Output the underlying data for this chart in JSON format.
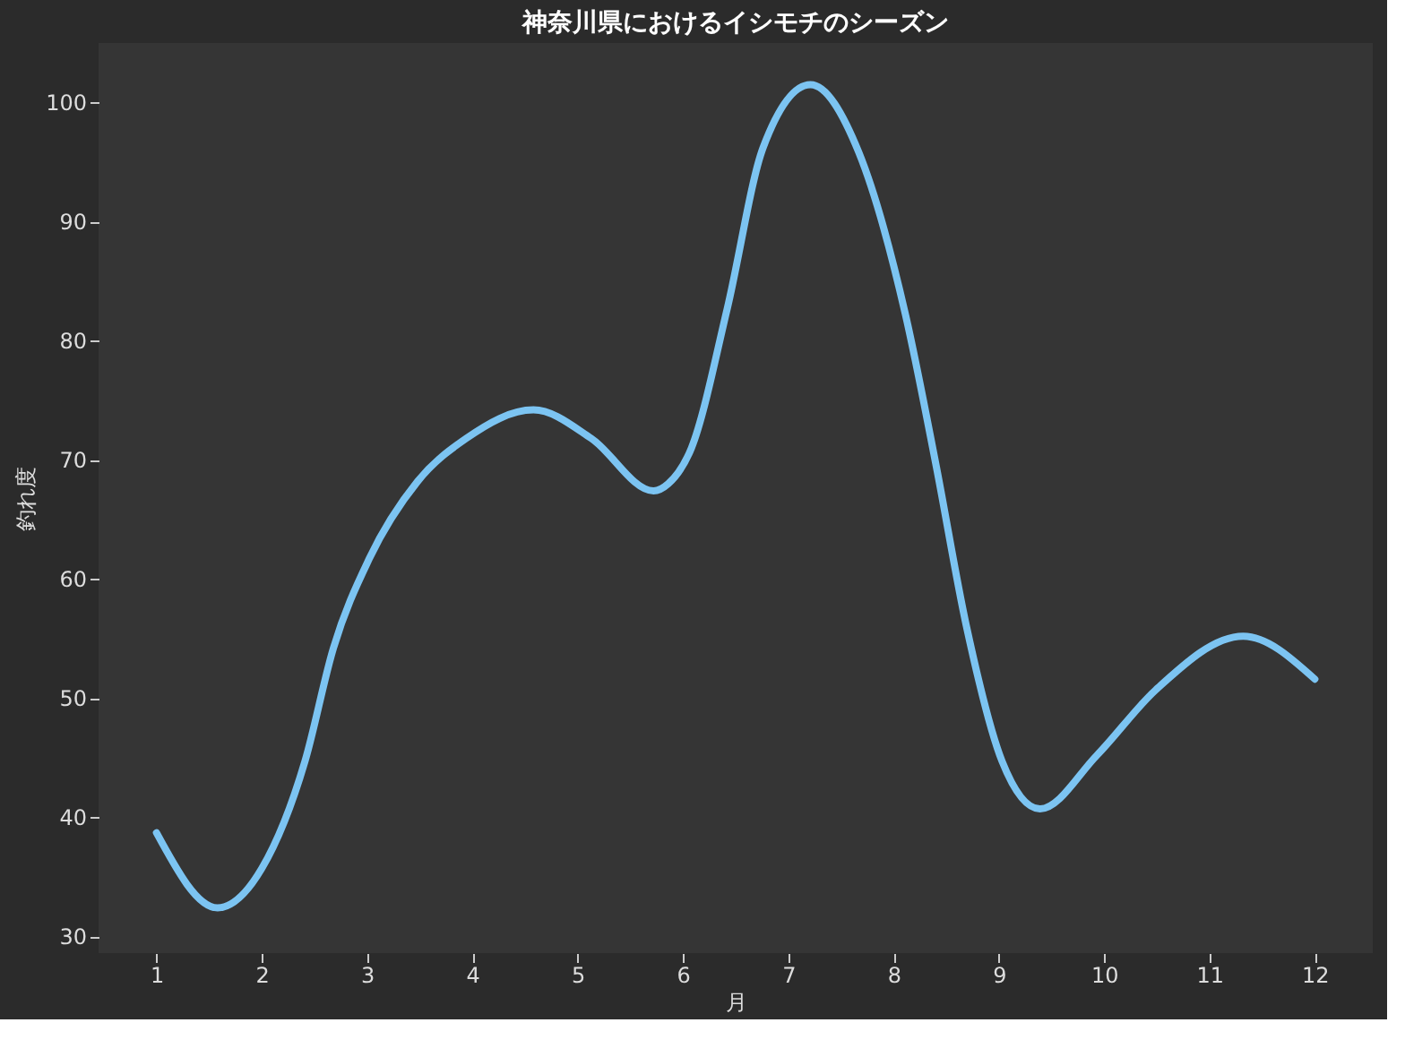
{
  "chart_data": {
    "type": "line",
    "title": "神奈川県におけるイシモチのシーズン",
    "xlabel": "月",
    "ylabel": "釣れ度",
    "x": [
      1.0,
      1.58,
      2.0,
      2.41,
      2.68,
      3.02,
      3.48,
      3.94,
      4.58,
      5.13,
      5.72,
      5.86,
      6.08,
      6.42,
      6.76,
      7.21,
      7.67,
      8.11,
      8.4,
      8.69,
      9.03,
      9.39,
      9.93,
      10.49,
      11.32,
      12.0
    ],
    "series": [
      {
        "color": "#7cc4f2",
        "values": [
          38.7,
          32.4,
          35.7,
          44.7,
          54.2,
          61.7,
          68.2,
          71.8,
          74.2,
          71.8,
          67.4,
          68.0,
          71.0,
          82.7,
          96.2,
          101.5,
          95.8,
          82.3,
          69.7,
          56.1,
          44.7,
          40.7,
          45.2,
          50.7,
          55.2,
          51.6
        ]
      }
    ],
    "xlim": [
      0.45,
      12.55
    ],
    "xticks": [
      1,
      2,
      3,
      4,
      5,
      6,
      7,
      8,
      9,
      10,
      11,
      12
    ],
    "ylim": [
      28.6,
      105
    ],
    "yticks": [
      30,
      40,
      50,
      60,
      70,
      80,
      90,
      100
    ],
    "grid": false,
    "marker": "none",
    "line_style": "solid"
  }
}
